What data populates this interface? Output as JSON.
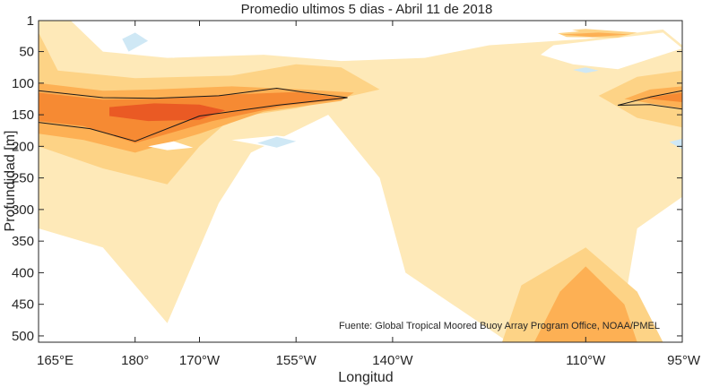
{
  "chart_data": {
    "type": "heatmap",
    "title": "Promedio ultimos 5 dias - Abril 11 de 2018",
    "xlabel": "Longitud",
    "ylabel": "Profundidad [m]",
    "x_ticks": [
      {
        "value": 165,
        "label": "165°E"
      },
      {
        "value": 180,
        "label": "180°"
      },
      {
        "value": 190,
        "label": "170°W"
      },
      {
        "value": 205,
        "label": "155°W"
      },
      {
        "value": 220,
        "label": "140°W"
      },
      {
        "value": 250,
        "label": "110°W"
      },
      {
        "value": 265,
        "label": "95°W"
      }
    ],
    "y_ticks": [
      1,
      50,
      100,
      150,
      200,
      250,
      300,
      350,
      400,
      450,
      500
    ],
    "xlim": [
      165,
      265
    ],
    "ylim": [
      1,
      510
    ],
    "y_reversed": true,
    "levels": [
      {
        "name": "cool",
        "color": "#cfe8f5"
      },
      {
        "name": "neutral",
        "color": "#ffffff"
      },
      {
        "name": "warm-1",
        "color": "#fff5dc"
      },
      {
        "name": "warm-2",
        "color": "#fee9b8"
      },
      {
        "name": "warm-3",
        "color": "#fdd386"
      },
      {
        "name": "warm-4",
        "color": "#fdb054"
      },
      {
        "name": "warm-5",
        "color": "#f68a33"
      },
      {
        "name": "warm-6",
        "color": "#ea5a24"
      },
      {
        "name": "warm-7",
        "color": "#d32027"
      }
    ],
    "regions": [
      {
        "level": 3,
        "points": [
          [
            165,
            1
          ],
          [
            170,
            1
          ],
          [
            175,
            50
          ],
          [
            185,
            60
          ],
          [
            200,
            55
          ],
          [
            212,
            65
          ],
          [
            225,
            60
          ],
          [
            235,
            40
          ],
          [
            250,
            30
          ],
          [
            262,
            15
          ],
          [
            265,
            40
          ],
          [
            265,
            280
          ],
          [
            258,
            330
          ],
          [
            255,
            510
          ],
          [
            238,
            510
          ],
          [
            222,
            400
          ],
          [
            218,
            250
          ],
          [
            210,
            150
          ],
          [
            198,
            210
          ],
          [
            193,
            290
          ],
          [
            185,
            480
          ],
          [
            175,
            360
          ],
          [
            165,
            330
          ]
        ]
      },
      {
        "level": 4,
        "points": [
          [
            165,
            20
          ],
          [
            168,
            80
          ],
          [
            180,
            92
          ],
          [
            195,
            88
          ],
          [
            205,
            70
          ],
          [
            212,
            75
          ],
          [
            218,
            110
          ],
          [
            205,
            140
          ],
          [
            195,
            155
          ],
          [
            190,
            200
          ],
          [
            185,
            260
          ],
          [
            175,
            235
          ],
          [
            165,
            200
          ]
        ]
      },
      {
        "level": 5,
        "points": [
          [
            165,
            100
          ],
          [
            175,
            112
          ],
          [
            183,
            110
          ],
          [
            195,
            105
          ],
          [
            206,
            110
          ],
          [
            214,
            115
          ],
          [
            212,
            128
          ],
          [
            200,
            145
          ],
          [
            190,
            180
          ],
          [
            180,
            210
          ],
          [
            172,
            190
          ],
          [
            165,
            180
          ]
        ]
      },
      {
        "level": 6,
        "points": [
          [
            165,
            115
          ],
          [
            175,
            126
          ],
          [
            183,
            125
          ],
          [
            195,
            118
          ],
          [
            205,
            114
          ],
          [
            213,
            124
          ],
          [
            203,
            136
          ],
          [
            192,
            160
          ],
          [
            180,
            195
          ],
          [
            172,
            168
          ],
          [
            165,
            160
          ]
        ]
      },
      {
        "level": 7,
        "points": [
          [
            176,
            138
          ],
          [
            183,
            132
          ],
          [
            190,
            134
          ],
          [
            194,
            143
          ],
          [
            190,
            158
          ],
          [
            182,
            160
          ],
          [
            176,
            152
          ]
        ]
      },
      {
        "level": 4,
        "points": [
          [
            252,
            120
          ],
          [
            258,
            90
          ],
          [
            265,
            80
          ],
          [
            265,
            170
          ],
          [
            258,
            155
          ]
        ]
      },
      {
        "level": 5,
        "points": [
          [
            256,
            125
          ],
          [
            260,
            110
          ],
          [
            265,
            105
          ],
          [
            265,
            140
          ],
          [
            260,
            132
          ]
        ]
      },
      {
        "level": 6,
        "points": [
          [
            259,
            124
          ],
          [
            265,
            115
          ],
          [
            265,
            130
          ]
        ]
      },
      {
        "level": 4,
        "points": [
          [
            245,
            18
          ],
          [
            250,
            14
          ],
          [
            258,
            20
          ],
          [
            255,
            28
          ],
          [
            247,
            27
          ]
        ]
      },
      {
        "level": 5,
        "points": [
          [
            246,
            23
          ],
          [
            252,
            20
          ],
          [
            257,
            23
          ],
          [
            251,
            27
          ]
        ]
      },
      {
        "level": 4,
        "points": [
          [
            237,
            510
          ],
          [
            240,
            420
          ],
          [
            250,
            360
          ],
          [
            258,
            430
          ],
          [
            262,
            510
          ]
        ]
      },
      {
        "level": 5,
        "points": [
          [
            242,
            510
          ],
          [
            246,
            430
          ],
          [
            250,
            390
          ],
          [
            256,
            450
          ],
          [
            258,
            510
          ]
        ]
      },
      {
        "level": 1,
        "points": [
          [
            180,
            1
          ],
          [
            192,
            1
          ],
          [
            196,
            20
          ],
          [
            190,
            45
          ],
          [
            186,
            60
          ],
          [
            178,
            40
          ],
          [
            176,
            15
          ]
        ]
      },
      {
        "level": 1,
        "points": [
          [
            245,
            40
          ],
          [
            262,
            20
          ],
          [
            265,
            45
          ],
          [
            255,
            78
          ],
          [
            248,
            70
          ],
          [
            243,
            55
          ]
        ]
      },
      {
        "level": 1,
        "points": [
          [
            233,
            20
          ],
          [
            245,
            10
          ],
          [
            249,
            18
          ],
          [
            240,
            26
          ]
        ]
      },
      {
        "level": 1,
        "points": [
          [
            193,
            510
          ],
          [
            195,
            380
          ],
          [
            200,
            260
          ],
          [
            203,
            210
          ],
          [
            206,
            290
          ],
          [
            210,
            400
          ],
          [
            213,
            510
          ]
        ]
      },
      {
        "level": 1,
        "points": [
          [
            195,
            190
          ],
          [
            202,
            183
          ],
          [
            210,
            192
          ],
          [
            203,
            205
          ]
        ]
      },
      {
        "level": 1,
        "points": [
          [
            182,
            200
          ],
          [
            186,
            192
          ],
          [
            189,
            202
          ],
          [
            185,
            206
          ]
        ]
      },
      {
        "level": 0,
        "points": [
          [
            178,
            30
          ],
          [
            180,
            20
          ],
          [
            182,
            33
          ],
          [
            179,
            50
          ]
        ]
      },
      {
        "level": 0,
        "points": [
          [
            199,
            195
          ],
          [
            202,
            185
          ],
          [
            205,
            192
          ],
          [
            202,
            202
          ]
        ]
      },
      {
        "level": 0,
        "points": [
          [
            248,
            79
          ],
          [
            250,
            75
          ],
          [
            252,
            80
          ],
          [
            250,
            84
          ]
        ]
      },
      {
        "level": 0,
        "points": [
          [
            263,
            193
          ],
          [
            265,
            188
          ],
          [
            265,
            205
          ]
        ]
      }
    ],
    "contour_lines": [
      {
        "points": [
          [
            165,
            112
          ],
          [
            175,
            123
          ],
          [
            183,
            124
          ],
          [
            193,
            120
          ],
          [
            202,
            108
          ],
          [
            206,
            114
          ],
          [
            213,
            123
          ]
        ]
      },
      {
        "points": [
          [
            213,
            123
          ],
          [
            202,
            135
          ],
          [
            190,
            152
          ],
          [
            180,
            192
          ],
          [
            173,
            172
          ],
          [
            165,
            162
          ]
        ]
      },
      {
        "points": [
          [
            255,
            135
          ],
          [
            260,
            122
          ],
          [
            265,
            112
          ]
        ]
      },
      {
        "points": [
          [
            255,
            135
          ],
          [
            260,
            134
          ],
          [
            265,
            141
          ]
        ]
      }
    ],
    "annotation": "Fuente: Global Tropical Moored Buoy Array Program Office, NOAA/PMEL"
  }
}
